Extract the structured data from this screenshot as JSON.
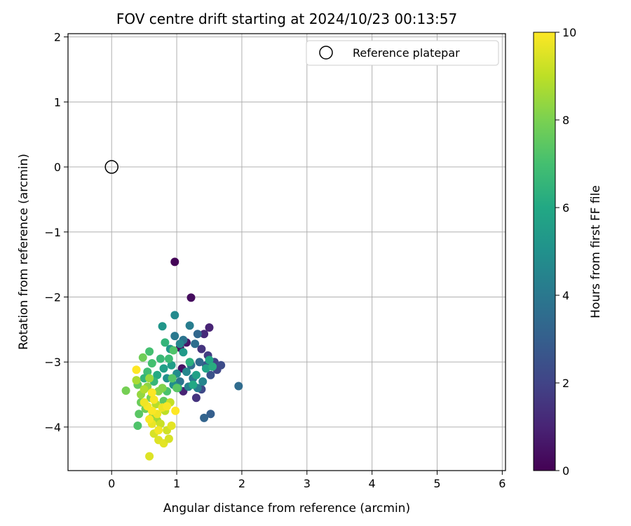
{
  "chart_data": {
    "type": "scatter",
    "title": "FOV centre drift starting at 2024/10/23 00:13:57",
    "xlabel": "Angular distance from reference (arcmin)",
    "ylabel": "Rotation from reference (arcmin)",
    "xlim": [
      -0.67,
      6.05
    ],
    "ylim": [
      -4.67,
      2.05
    ],
    "xticks": [
      0,
      1,
      2,
      3,
      4,
      5,
      6
    ],
    "xtick_labels": [
      "0",
      "1",
      "2",
      "3",
      "4",
      "5",
      "6"
    ],
    "yticks": [
      2,
      1,
      0,
      -1,
      -2,
      -3,
      -4
    ],
    "ytick_labels": [
      "2",
      "1",
      "0",
      "−1",
      "−2",
      "−3",
      "−4"
    ],
    "grid": true,
    "legend": {
      "placement": "top-right",
      "entries": [
        "Reference platepar"
      ]
    },
    "reference_point": {
      "x": 0,
      "y": 0,
      "label": "Reference platepar"
    },
    "colorbar": {
      "label": "Hours from first FF file",
      "range": [
        0,
        10
      ],
      "ticks": [
        0,
        2,
        4,
        6,
        8,
        10
      ],
      "tick_labels": [
        "0",
        "2",
        "4",
        "6",
        "8",
        "10"
      ],
      "colormap": "viridis"
    },
    "series": [
      {
        "points": [
          [
            0.97,
            -1.46,
            0.1
          ],
          [
            1.22,
            -2.01,
            0.3
          ],
          [
            1.05,
            -2.78,
            0.4
          ],
          [
            1.15,
            -2.7,
            0.6
          ],
          [
            1.08,
            -3.1,
            0.5
          ],
          [
            1.5,
            -2.47,
            1.0
          ],
          [
            1.42,
            -2.57,
            1.2
          ],
          [
            1.38,
            -2.8,
            1.5
          ],
          [
            1.3,
            -3.55,
            1.5
          ],
          [
            1.1,
            -3.45,
            1.0
          ],
          [
            1.48,
            -2.9,
            1.8
          ],
          [
            1.58,
            -3.0,
            2.0
          ],
          [
            1.68,
            -3.05,
            2.3
          ],
          [
            1.62,
            -3.12,
            2.1
          ],
          [
            1.52,
            -3.2,
            2.5
          ],
          [
            1.45,
            -3.05,
            2.6
          ],
          [
            1.38,
            -3.42,
            2.2
          ],
          [
            1.52,
            -3.8,
            3.0
          ],
          [
            1.42,
            -3.86,
            3.2
          ],
          [
            1.95,
            -3.37,
            3.5
          ],
          [
            1.2,
            -2.44,
            4.2
          ],
          [
            0.97,
            -2.28,
            4.7
          ],
          [
            0.97,
            -2.6,
            4.0
          ],
          [
            1.1,
            -2.66,
            3.8
          ],
          [
            1.32,
            -2.57,
            3.3
          ],
          [
            1.28,
            -2.72,
            3.6
          ],
          [
            1.35,
            -3.0,
            3.4
          ],
          [
            1.22,
            -3.05,
            3.5
          ],
          [
            1.25,
            -3.25,
            4.0
          ],
          [
            1.32,
            -3.4,
            4.2
          ],
          [
            1.4,
            -3.3,
            4.5
          ],
          [
            1.18,
            -3.38,
            4.4
          ],
          [
            1.05,
            -3.3,
            3.9
          ],
          [
            1.15,
            -3.15,
            4.6
          ],
          [
            1.0,
            -3.18,
            4.8
          ],
          [
            0.95,
            -3.35,
            4.9
          ],
          [
            0.85,
            -3.25,
            5.0
          ],
          [
            0.78,
            -2.45,
            5.2
          ],
          [
            1.05,
            -2.72,
            4.5
          ],
          [
            0.9,
            -2.8,
            5.3
          ],
          [
            1.1,
            -2.85,
            5.4
          ],
          [
            0.92,
            -3.05,
            5.5
          ],
          [
            0.8,
            -3.1,
            5.6
          ],
          [
            1.3,
            -3.2,
            5.7
          ],
          [
            1.45,
            -3.1,
            5.8
          ],
          [
            1.5,
            -2.97,
            5.9
          ],
          [
            1.55,
            -3.07,
            6.2
          ],
          [
            1.25,
            -3.35,
            6.0
          ],
          [
            1.2,
            -3.0,
            6.3
          ],
          [
            1.02,
            -3.4,
            6.4
          ],
          [
            0.7,
            -3.2,
            6.1
          ],
          [
            0.65,
            -3.3,
            6.6
          ],
          [
            0.82,
            -2.7,
            6.5
          ],
          [
            0.88,
            -2.95,
            6.8
          ],
          [
            0.75,
            -2.95,
            6.7
          ],
          [
            0.62,
            -3.02,
            7.0
          ],
          [
            0.55,
            -3.15,
            6.9
          ],
          [
            0.5,
            -3.25,
            6.5
          ],
          [
            0.58,
            -2.84,
            7.0
          ],
          [
            0.95,
            -2.82,
            7.2
          ],
          [
            0.93,
            -3.25,
            7.3
          ],
          [
            1.0,
            -3.4,
            7.4
          ],
          [
            0.85,
            -3.45,
            7.1
          ],
          [
            0.8,
            -3.6,
            7.5
          ],
          [
            0.4,
            -3.35,
            7.6
          ],
          [
            0.48,
            -2.93,
            7.8
          ],
          [
            0.22,
            -3.44,
            7.9
          ],
          [
            0.45,
            -3.62,
            7.7
          ],
          [
            0.42,
            -3.8,
            7.4
          ],
          [
            0.4,
            -3.98,
            7.2
          ],
          [
            0.52,
            -3.72,
            7.8
          ],
          [
            0.6,
            -3.55,
            8.0
          ],
          [
            0.72,
            -3.45,
            8.2
          ],
          [
            0.78,
            -3.4,
            8.1
          ],
          [
            0.55,
            -3.38,
            8.3
          ],
          [
            0.45,
            -3.5,
            8.4
          ],
          [
            0.62,
            -3.85,
            8.3
          ],
          [
            0.7,
            -3.9,
            8.6
          ],
          [
            0.58,
            -3.25,
            8.5
          ],
          [
            0.38,
            -3.28,
            8.7
          ],
          [
            0.5,
            -3.42,
            8.8
          ],
          [
            0.68,
            -3.65,
            8.9
          ],
          [
            0.82,
            -3.75,
            9.0
          ],
          [
            0.9,
            -3.62,
            9.1
          ],
          [
            0.75,
            -3.95,
            9.2
          ],
          [
            0.85,
            -4.05,
            9.3
          ],
          [
            0.65,
            -4.1,
            9.4
          ],
          [
            0.72,
            -4.2,
            9.5
          ],
          [
            0.8,
            -4.25,
            9.6
          ],
          [
            0.88,
            -4.18,
            9.4
          ],
          [
            0.58,
            -4.45,
            9.5
          ],
          [
            0.92,
            -3.98,
            9.6
          ],
          [
            0.78,
            -3.7,
            9.7
          ],
          [
            0.7,
            -3.8,
            9.8
          ],
          [
            0.62,
            -3.95,
            9.7
          ],
          [
            0.55,
            -3.68,
            9.9
          ],
          [
            0.5,
            -3.62,
            9.8
          ],
          [
            0.62,
            -3.47,
            10.0
          ],
          [
            0.85,
            -3.68,
            9.9
          ],
          [
            0.98,
            -3.75,
            10.0
          ],
          [
            0.62,
            -3.75,
            9.95
          ],
          [
            0.58,
            -3.88,
            9.9
          ],
          [
            0.38,
            -3.12,
            10.0
          ],
          [
            0.72,
            -4.05,
            9.85
          ],
          [
            0.65,
            -3.58,
            9.9
          ]
        ]
      }
    ]
  }
}
